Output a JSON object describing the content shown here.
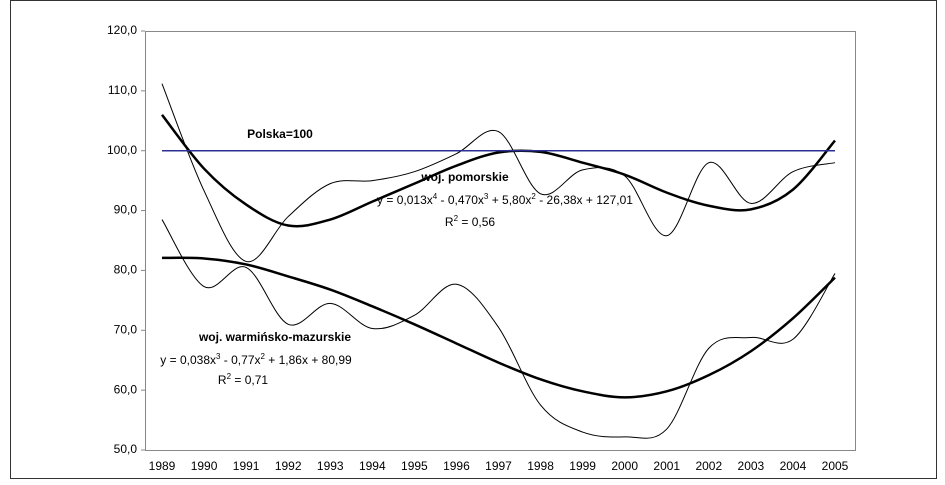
{
  "chart_data": {
    "type": "line",
    "categories": [
      "1989",
      "1990",
      "1991",
      "1992",
      "1993",
      "1994",
      "1995",
      "1996",
      "1997",
      "1998",
      "1999",
      "2000",
      "2001",
      "2002",
      "2003",
      "2004",
      "2005"
    ],
    "series": [
      {
        "name": "woj. pomorskie",
        "color": "#000000",
        "width": 1,
        "values": [
          111.2,
          93.3,
          81.5,
          89,
          94.5,
          95,
          96.5,
          99.5,
          103.2,
          92.8,
          96.8,
          95.8,
          85.8,
          98,
          91.2,
          96.5,
          98
        ]
      },
      {
        "name": "woj. warmińsko-mazurskie",
        "color": "#000000",
        "width": 1,
        "values": [
          88.5,
          77.3,
          80.5,
          71,
          74.5,
          70.3,
          72.5,
          77.7,
          70.5,
          57.5,
          53,
          52.2,
          53.5,
          67,
          68.8,
          68.5,
          79.5
        ]
      },
      {
        "color": "#000000",
        "width": 2.5,
        "values": [
          106,
          97,
          91,
          87.5,
          88.5,
          91.5,
          94.5,
          97.5,
          99.7,
          99.8,
          98,
          96,
          93,
          90.8,
          90.2,
          93.5,
          101.7
        ]
      },
      {
        "color": "#000000",
        "width": 2.5,
        "values": [
          82.1,
          82,
          81,
          79,
          76.8,
          74,
          71,
          67.8,
          64.6,
          61.8,
          59.8,
          58.8,
          59.8,
          62.5,
          66.5,
          72,
          78.8
        ]
      },
      {
        "name": "Polska=100",
        "color": "#2b2f91",
        "width": 1.5,
        "values": [
          100,
          100,
          100,
          100,
          100,
          100,
          100,
          100,
          100,
          100,
          100,
          100,
          100,
          100,
          100,
          100,
          100
        ]
      }
    ],
    "annotations": [
      {
        "text": "Polska=100"
      },
      {
        "text": "woj. pomorskie"
      },
      {
        "parts": [
          "y = 0,013x",
          "4",
          " - 0,470x",
          "3",
          " + 5,80x",
          "2",
          " - 26,38x + 127,01"
        ]
      },
      {
        "parts": [
          "R",
          "2",
          " = 0,56"
        ]
      },
      {
        "text": "woj. warmińsko-mazurskie"
      },
      {
        "parts": [
          "y = 0,038x",
          "3",
          " - 0,77x",
          "2",
          " + 1,86x + 80,99"
        ]
      },
      {
        "parts": [
          "R",
          "2",
          " = 0,71"
        ]
      }
    ],
    "ylim": [
      50,
      120
    ],
    "yticks": [
      {
        "value": 50,
        "label": "50,0"
      },
      {
        "value": 60,
        "label": "60,0"
      },
      {
        "value": 70,
        "label": "70,0"
      },
      {
        "value": 80,
        "label": "80,0"
      },
      {
        "value": 90,
        "label": "90,0"
      },
      {
        "value": 100,
        "label": "100,0"
      },
      {
        "value": 110,
        "label": "110,0"
      },
      {
        "value": 120,
        "label": "120,0"
      }
    ],
    "grid": false
  }
}
